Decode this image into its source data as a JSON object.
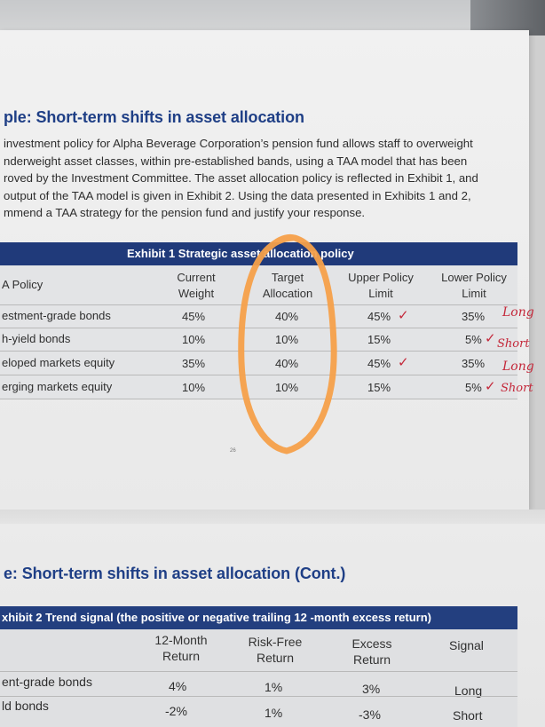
{
  "section1": {
    "heading": "ple: Short-term shifts in asset allocation",
    "paragraph_lines": [
      "investment policy for Alpha Beverage Corporation’s pension fund allows staff to overweight",
      "nderweight asset classes, within pre-established bands, using a TAA model that has been",
      "roved by the Investment Committee. The asset allocation policy is reflected in Exhibit 1, and",
      "output of the TAA model is given in Exhibit 2. Using the data presented in Exhibits 1 and 2,",
      "mmend a TAA strategy for the pension fund and justify your response."
    ]
  },
  "exhibit1": {
    "title": "Exhibit 1 Strategic asset allocation policy",
    "headers": {
      "policy": "A Policy",
      "current": [
        "Current",
        "Weight"
      ],
      "target": [
        "Target",
        "Allocation"
      ],
      "upper": [
        "Upper Policy",
        "Limit"
      ],
      "lower": [
        "Lower Policy",
        "Limit"
      ]
    },
    "rows": [
      {
        "name": "estment-grade bonds",
        "current": "45%",
        "target": "40%",
        "upper": "45%",
        "lower": "35%"
      },
      {
        "name": "h-yield bonds",
        "current": "10%",
        "target": "10%",
        "upper": "15%",
        "lower": "5%"
      },
      {
        "name": "eloped markets equity",
        "current": "35%",
        "target": "40%",
        "upper": "45%",
        "lower": "35%"
      },
      {
        "name": "erging markets equity",
        "current": "10%",
        "target": "10%",
        "upper": "15%",
        "lower": "5%"
      }
    ],
    "handwritten": [
      "Long",
      "Short",
      "Long",
      "Short"
    ],
    "check_mark": "✓"
  },
  "center_mark": "26",
  "section2": {
    "heading": "e: Short-term shifts in asset allocation (Cont.)"
  },
  "exhibit2": {
    "title": "xhibit 2 Trend signal (the positive or negative trailing 12 -month excess return)",
    "headers": {
      "ret12": [
        "12-Month",
        "Return"
      ],
      "riskfree": [
        "Risk-Free",
        "Return"
      ],
      "excess": [
        "Excess",
        "Return"
      ],
      "signal": "Signal"
    },
    "rows": [
      {
        "name": "ent-grade bonds",
        "ret12": "4%",
        "riskfree": "1%",
        "excess": "3%",
        "signal": "Long"
      },
      {
        "name": "ld bonds",
        "ret12": "-2%",
        "riskfree": "1%",
        "excess": "-3%",
        "signal": "Short"
      }
    ]
  },
  "colors": {
    "heading": "#1f3f86",
    "exhibit_bar": "#203a7a",
    "annotation_ink": "#c4283a",
    "highlight_circle": "#f5a04a"
  }
}
